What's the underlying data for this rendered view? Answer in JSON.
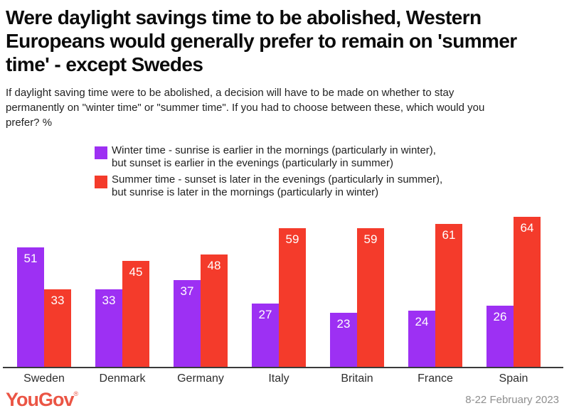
{
  "header": {
    "title": "Were daylight savings time to be abolished, Western Europeans would generally prefer to remain on 'summer time' - except Swedes",
    "subtitle": "If daylight saving time were to be abolished, a decision will have to be made on whether to stay permanently on \"winter time\" or \"summer time\". If you had to choose between these, which would you prefer? %"
  },
  "legend": {
    "winter": {
      "color": "#9D30F3",
      "line1": "Winter time - sunrise is earlier in the mornings (particularly in winter),",
      "line2": "but sunset is earlier in the evenings (particularly in summer)"
    },
    "summer": {
      "color": "#F43B2B",
      "line1": "Summer time - sunset is later in the evenings (particularly in summer),",
      "line2": "but sunrise is later in the mornings (particularly in winter)"
    }
  },
  "chart_data": {
    "type": "bar",
    "title": "Were daylight savings time to be abolished, Western Europeans would generally prefer to remain on 'summer time' - except Swedes",
    "categories": [
      "Sweden",
      "Denmark",
      "Germany",
      "Italy",
      "Britain",
      "France",
      "Spain"
    ],
    "series": [
      {
        "name": "Winter time",
        "color": "#9D30F3",
        "values": [
          51,
          33,
          37,
          27,
          23,
          24,
          26
        ]
      },
      {
        "name": "Summer time",
        "color": "#F43B2B",
        "values": [
          33,
          45,
          48,
          59,
          59,
          61,
          64
        ]
      }
    ],
    "xlabel": "",
    "ylabel": "",
    "ylim": [
      0,
      64
    ],
    "unit": "%",
    "grid": false,
    "legend_position": "top",
    "value_labels": "inside-top"
  },
  "footer": {
    "logo": "YouGov",
    "registered_mark": "®",
    "logo_color": "#EB5545",
    "date_range": "8-22 February 2023"
  }
}
